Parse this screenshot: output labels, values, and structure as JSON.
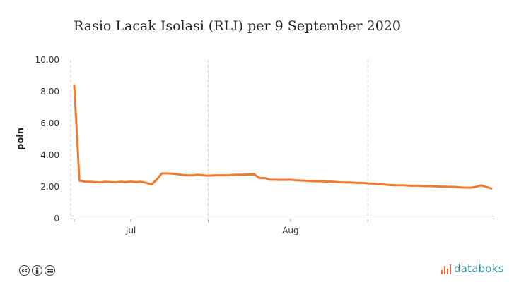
{
  "title": "Rasio Lacak Isolasi (RLI) per 9 September 2020",
  "footer": {
    "license_icons": [
      "cc-icon",
      "by-icon",
      "nd-icon"
    ],
    "brand": "databoks",
    "brand_color": "#2d8f9c",
    "brand_mark_color": "#f26b3a"
  },
  "chart_data": {
    "type": "line",
    "title": "Rasio Lacak Isolasi (RLI) per 9 September 2020",
    "xlabel": "",
    "ylabel": "poin",
    "ylim": [
      0,
      10
    ],
    "yticks": [
      0,
      2,
      4,
      6,
      8,
      10
    ],
    "ytick_labels": [
      "0",
      "2.00",
      "4.00",
      "6.00",
      "8.00",
      "10.00"
    ],
    "xlim": [
      "2020-06-20",
      "2020-09-09"
    ],
    "xticks": [
      "2020-07-01",
      "2020-08-01"
    ],
    "xtick_labels": [
      "Jul",
      "Aug"
    ],
    "vgrid": [
      "2020-07-16",
      "2020-08-16"
    ],
    "grid": "vertical dashed",
    "legend": "none",
    "line_color": "#f07a2d",
    "series": [
      {
        "x": [
          "2020-06-20",
          "2020-06-21",
          "2020-06-22",
          "2020-06-23",
          "2020-06-24",
          "2020-06-25",
          "2020-06-26",
          "2020-06-27",
          "2020-06-28",
          "2020-06-29",
          "2020-06-30",
          "2020-07-01",
          "2020-07-02",
          "2020-07-03",
          "2020-07-04",
          "2020-07-05",
          "2020-07-06",
          "2020-07-07",
          "2020-07-08",
          "2020-07-09",
          "2020-07-10",
          "2020-07-11",
          "2020-07-12",
          "2020-07-13",
          "2020-07-14",
          "2020-07-15",
          "2020-07-16",
          "2020-07-17",
          "2020-07-18",
          "2020-07-19",
          "2020-07-20",
          "2020-07-21",
          "2020-07-22",
          "2020-07-23",
          "2020-07-24",
          "2020-07-25",
          "2020-07-26",
          "2020-07-27",
          "2020-07-28",
          "2020-07-29",
          "2020-07-30",
          "2020-07-31",
          "2020-08-01",
          "2020-08-02",
          "2020-08-03",
          "2020-08-04",
          "2020-08-05",
          "2020-08-06",
          "2020-08-07",
          "2020-08-08",
          "2020-08-09",
          "2020-08-10",
          "2020-08-11",
          "2020-08-12",
          "2020-08-13",
          "2020-08-14",
          "2020-08-15",
          "2020-08-16",
          "2020-08-17",
          "2020-08-18",
          "2020-08-19",
          "2020-08-20",
          "2020-08-21",
          "2020-08-22",
          "2020-08-23",
          "2020-08-24",
          "2020-08-25",
          "2020-08-26",
          "2020-08-27",
          "2020-08-28",
          "2020-08-29",
          "2020-08-30",
          "2020-08-31",
          "2020-09-01",
          "2020-09-02",
          "2020-09-03",
          "2020-09-04",
          "2020-09-05",
          "2020-09-06",
          "2020-09-07",
          "2020-09-08",
          "2020-09-09"
        ],
        "values": [
          8.4,
          2.4,
          2.33,
          2.32,
          2.3,
          2.28,
          2.32,
          2.3,
          2.28,
          2.32,
          2.3,
          2.33,
          2.3,
          2.32,
          2.25,
          2.15,
          2.45,
          2.85,
          2.85,
          2.83,
          2.8,
          2.75,
          2.72,
          2.72,
          2.77,
          2.73,
          2.7,
          2.72,
          2.73,
          2.73,
          2.72,
          2.76,
          2.77,
          2.77,
          2.78,
          2.78,
          2.55,
          2.55,
          2.45,
          2.45,
          2.44,
          2.44,
          2.45,
          2.42,
          2.4,
          2.38,
          2.36,
          2.35,
          2.35,
          2.33,
          2.33,
          2.3,
          2.28,
          2.28,
          2.27,
          2.25,
          2.25,
          2.22,
          2.2,
          2.17,
          2.15,
          2.12,
          2.1,
          2.1,
          2.1,
          2.08,
          2.07,
          2.07,
          2.05,
          2.05,
          2.03,
          2.02,
          2.01,
          2.0,
          2.0,
          1.97,
          1.95,
          1.95,
          2.0,
          2.1,
          2.0,
          1.9
        ]
      }
    ]
  }
}
